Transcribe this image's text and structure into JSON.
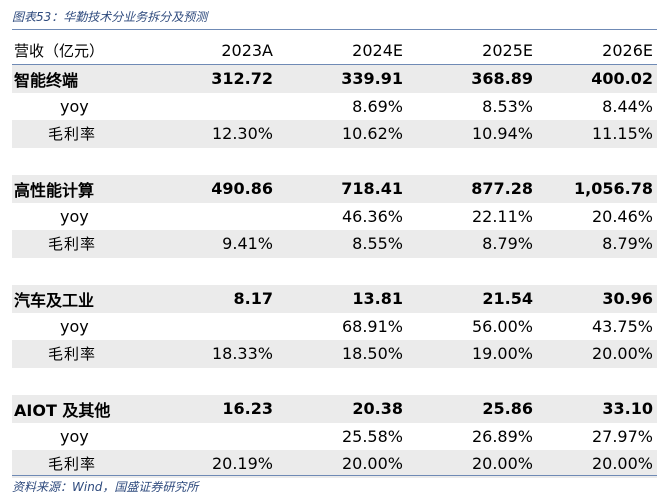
{
  "title": "图表53：华勤技术分业务拆分及预测",
  "source": "资料来源：Wind，国盛证券研究所",
  "colors": {
    "accent": "#2e4a7d",
    "rule": "#6f8ab5",
    "row_shade": "#ebebeb"
  },
  "header": {
    "label": "营收（亿元）",
    "years": [
      "2023A",
      "2024E",
      "2025E",
      "2026E"
    ]
  },
  "segments": [
    {
      "name": "智能终端",
      "revenue": [
        "312.72",
        "339.91",
        "368.89",
        "400.02"
      ],
      "yoy_label": "yoy",
      "yoy": [
        "",
        "8.69%",
        "8.53%",
        "8.44%"
      ],
      "gm_label": "毛利率",
      "gross_margin": [
        "12.30%",
        "10.62%",
        "10.94%",
        "11.15%"
      ]
    },
    {
      "name": "高性能计算",
      "revenue": [
        "490.86",
        "718.41",
        "877.28",
        "1,056.78"
      ],
      "yoy_label": "yoy",
      "yoy": [
        "",
        "46.36%",
        "22.11%",
        "20.46%"
      ],
      "gm_label": "毛利率",
      "gross_margin": [
        "9.41%",
        "8.55%",
        "8.79%",
        "8.79%"
      ]
    },
    {
      "name": "汽车及工业",
      "revenue": [
        "8.17",
        "13.81",
        "21.54",
        "30.96"
      ],
      "yoy_label": "yoy",
      "yoy": [
        "",
        "68.91%",
        "56.00%",
        "43.75%"
      ],
      "gm_label": "毛利率",
      "gross_margin": [
        "18.33%",
        "18.50%",
        "19.00%",
        "20.00%"
      ]
    },
    {
      "name": "AIOT 及其他",
      "revenue": [
        "16.23",
        "20.38",
        "25.86",
        "33.10"
      ],
      "yoy_label": "yoy",
      "yoy": [
        "",
        "25.58%",
        "26.89%",
        "27.97%"
      ],
      "gm_label": "毛利率",
      "gross_margin": [
        "20.19%",
        "20.00%",
        "20.00%",
        "20.00%"
      ]
    }
  ]
}
